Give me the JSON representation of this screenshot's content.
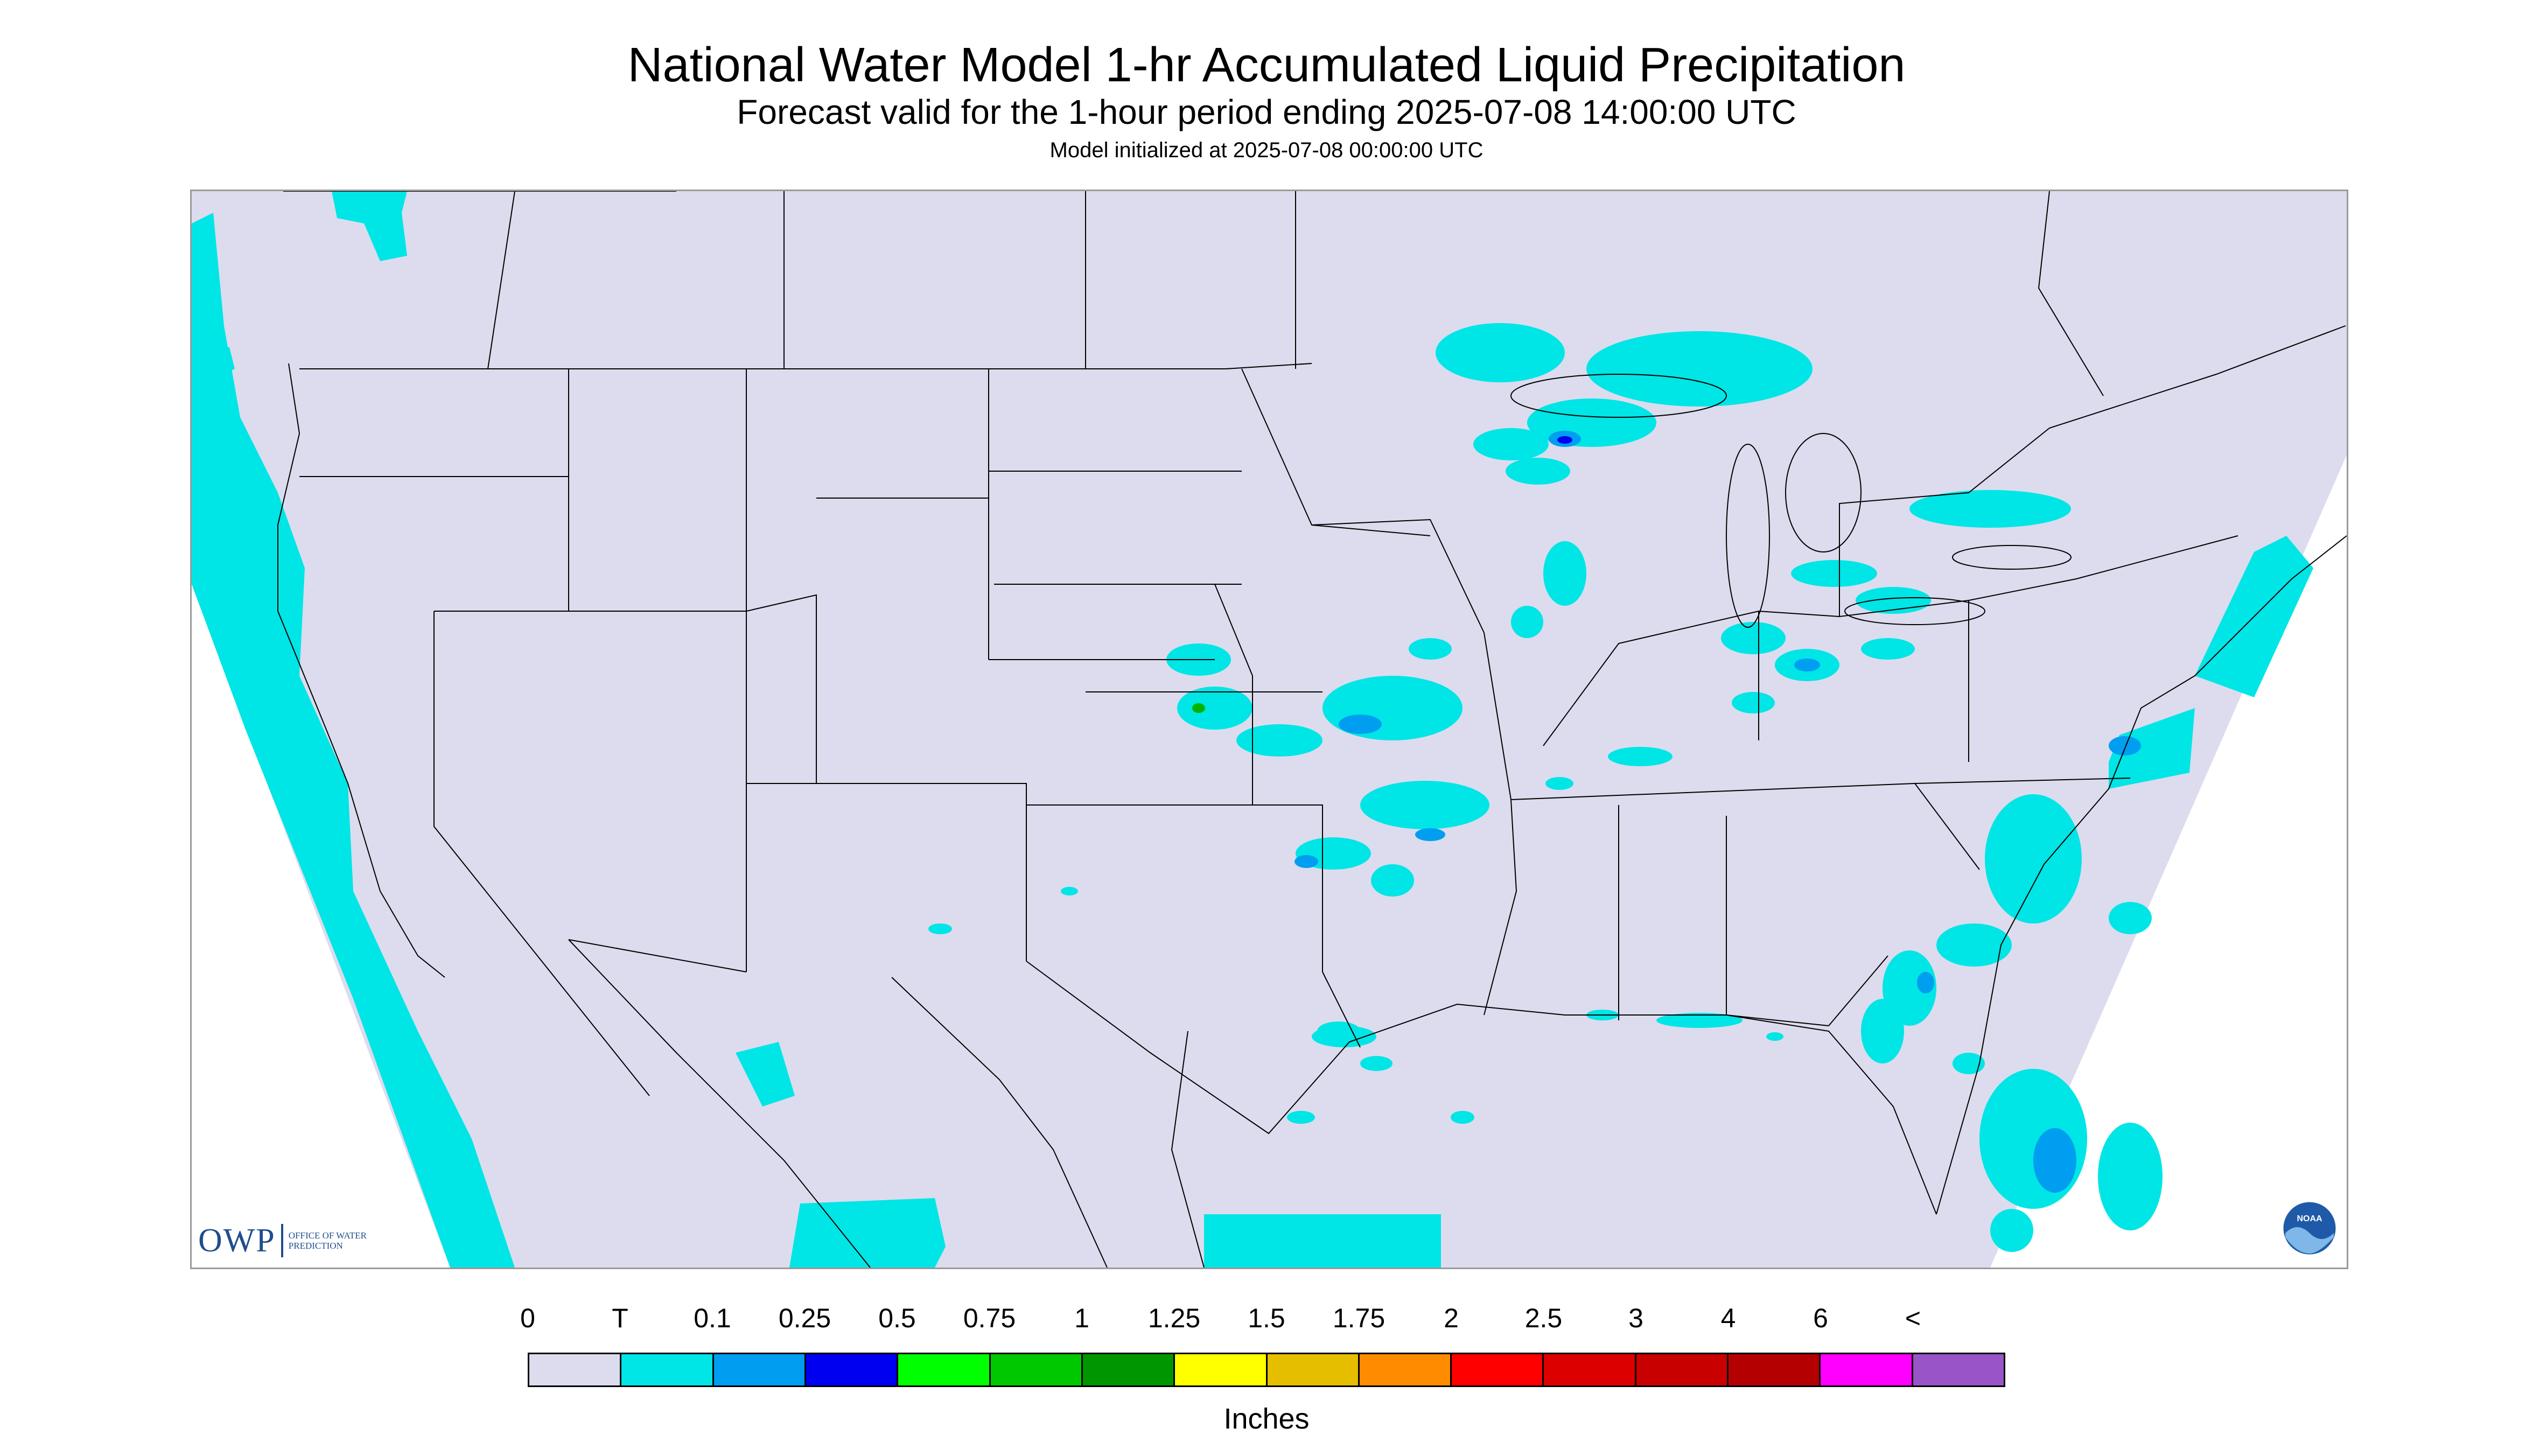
{
  "map": {
    "title": "National Water Model 1-hr Accumulated Liquid Precipitation",
    "subtitle": "Forecast valid for the 1-hour period ending 2025-07-08 14:00:00 UTC",
    "init_time": "Model initialized at 2025-07-08 00:00:00 UTC",
    "background_color": "#dcdcee",
    "outside_domain_color": "#ffffff",
    "boundary_color": "#000000",
    "precip_colors": {
      "trace": "#00e5e5",
      "light": "#009ef0",
      "moderate": "#0000f0",
      "green": "#00b400"
    }
  },
  "logos": {
    "owp_text": "OWP",
    "owp_sub": "OFFICE OF WATER PREDICTION",
    "noaa_text": "NOAA"
  },
  "legend": {
    "labels": [
      "0",
      "T",
      "0.1",
      "0.25",
      "0.5",
      "0.75",
      "1",
      "1.25",
      "1.5",
      "1.75",
      "2",
      "2.5",
      "3",
      "4",
      "6",
      "<"
    ],
    "colors": [
      "#dcdcee",
      "#00e5e5",
      "#009ef0",
      "#0000f0",
      "#00ff00",
      "#00c800",
      "#009600",
      "#ffff00",
      "#e6be00",
      "#ff8c00",
      "#ff0000",
      "#dc0000",
      "#c80000",
      "#b40000",
      "#ff00ff",
      "#9955c8"
    ],
    "units": "Inches"
  }
}
